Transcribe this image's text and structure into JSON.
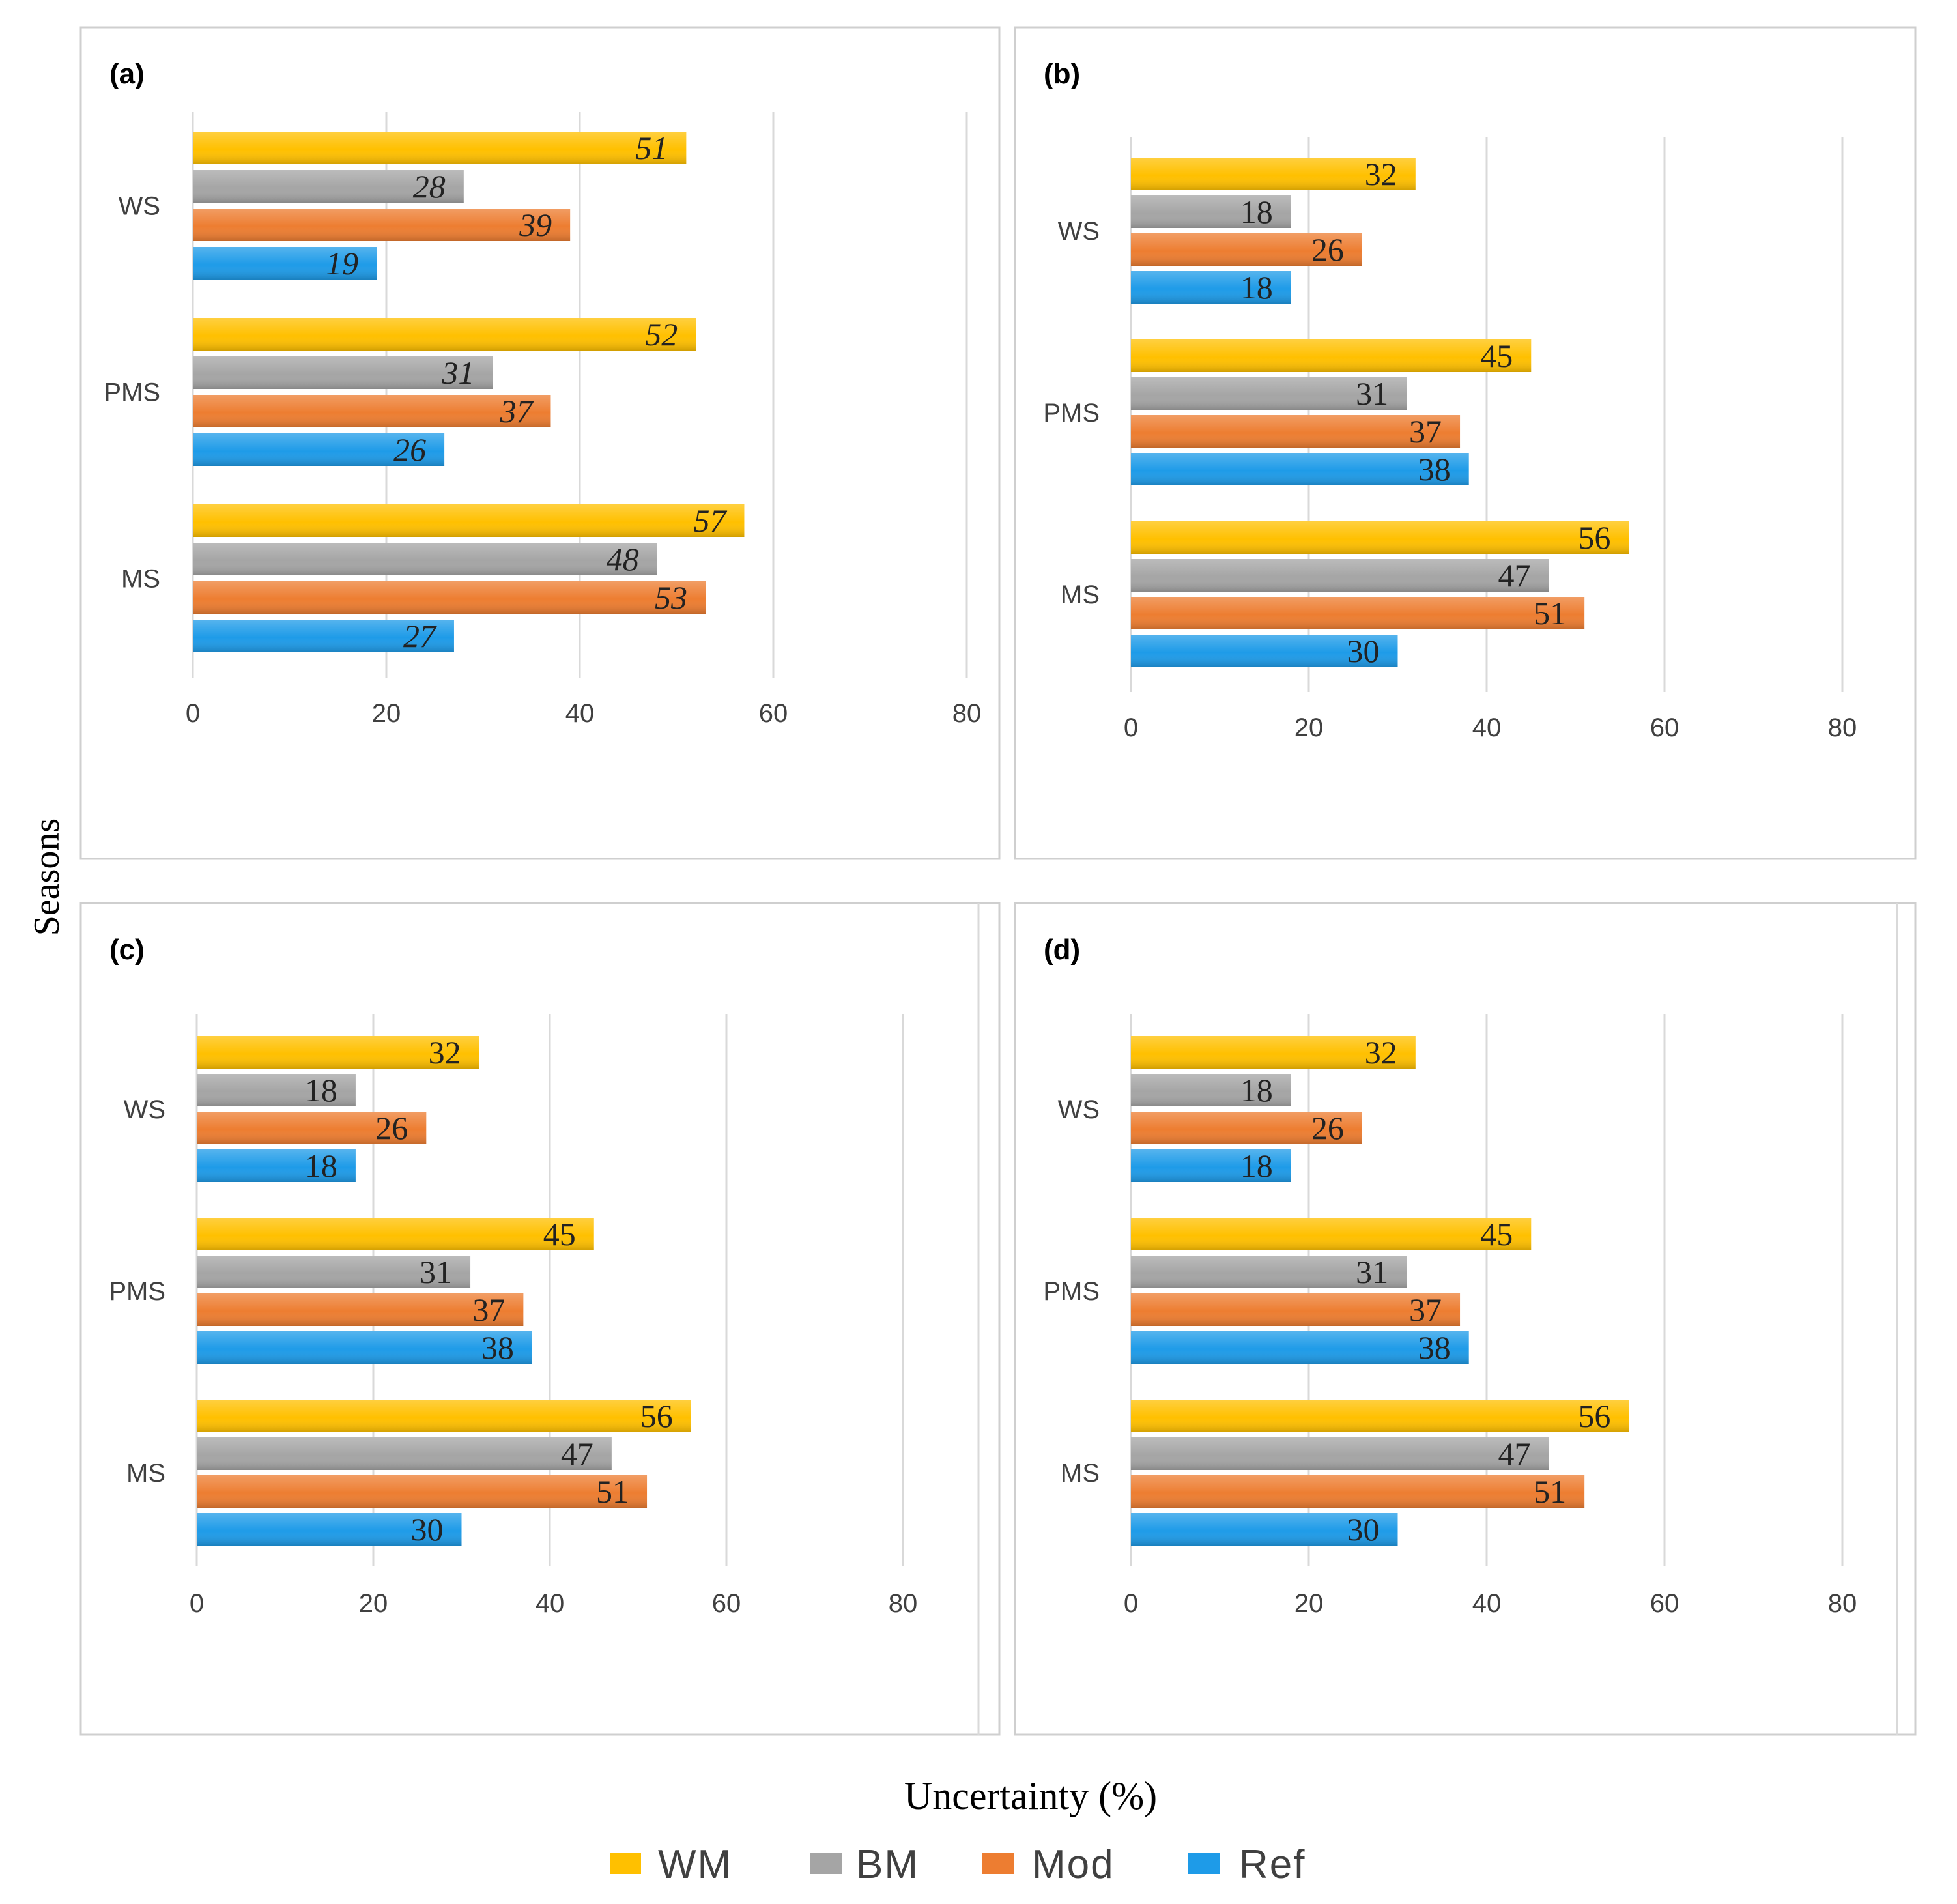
{
  "figure": {
    "ylabel": "Seasons",
    "xlabel": "Uncertainty (%)"
  },
  "legend": [
    {
      "name": "WM",
      "color": "#ffc000"
    },
    {
      "name": "BM",
      "color": "#a5a5a5"
    },
    {
      "name": "Mod",
      "color": "#ed7d31"
    },
    {
      "name": "Ref",
      "color": "#1e9be8"
    }
  ],
  "chart_data": [
    {
      "type": "bar",
      "orientation": "horizontal",
      "title": "(a)",
      "categories": [
        "WS",
        "PMS",
        "MS"
      ],
      "series": [
        {
          "name": "WM",
          "values": [
            51,
            52,
            57
          ]
        },
        {
          "name": "BM",
          "values": [
            28,
            31,
            48
          ]
        },
        {
          "name": "Mod",
          "values": [
            39,
            37,
            53
          ]
        },
        {
          "name": "Ref",
          "values": [
            19,
            26,
            27
          ]
        }
      ],
      "xlim": [
        0,
        80
      ],
      "xticks": [
        "0",
        "20",
        "40",
        "60",
        "80"
      ],
      "italic_labels": true
    },
    {
      "type": "bar",
      "orientation": "horizontal",
      "title": "(b)",
      "categories": [
        "WS",
        "PMS",
        "MS"
      ],
      "series": [
        {
          "name": "WM",
          "values": [
            32,
            45,
            56
          ]
        },
        {
          "name": "BM",
          "values": [
            18,
            31,
            47
          ]
        },
        {
          "name": "Mod",
          "values": [
            26,
            37,
            51
          ]
        },
        {
          "name": "Ref",
          "values": [
            18,
            38,
            30
          ]
        }
      ],
      "xlim": [
        0,
        80
      ],
      "xticks": [
        "0",
        "20",
        "40",
        "60",
        "80"
      ],
      "italic_labels": false
    },
    {
      "type": "bar",
      "orientation": "horizontal",
      "title": "(c)",
      "categories": [
        "WS",
        "PMS",
        "MS"
      ],
      "series": [
        {
          "name": "WM",
          "values": [
            32,
            45,
            56
          ]
        },
        {
          "name": "BM",
          "values": [
            18,
            31,
            47
          ]
        },
        {
          "name": "Mod",
          "values": [
            26,
            37,
            51
          ]
        },
        {
          "name": "Ref",
          "values": [
            18,
            38,
            30
          ]
        }
      ],
      "xlim": [
        0,
        80
      ],
      "xticks": [
        "0",
        "20",
        "40",
        "60",
        "80"
      ],
      "italic_labels": false
    },
    {
      "type": "bar",
      "orientation": "horizontal",
      "title": "(d)",
      "categories": [
        "WS",
        "PMS",
        "MS"
      ],
      "series": [
        {
          "name": "WM",
          "values": [
            32,
            45,
            56
          ]
        },
        {
          "name": "BM",
          "values": [
            18,
            31,
            47
          ]
        },
        {
          "name": "Mod",
          "values": [
            26,
            37,
            51
          ]
        },
        {
          "name": "Ref",
          "values": [
            18,
            38,
            30
          ]
        }
      ],
      "xlim": [
        0,
        80
      ],
      "xticks": [
        "0",
        "20",
        "40",
        "60",
        "80"
      ],
      "italic_labels": false
    }
  ]
}
